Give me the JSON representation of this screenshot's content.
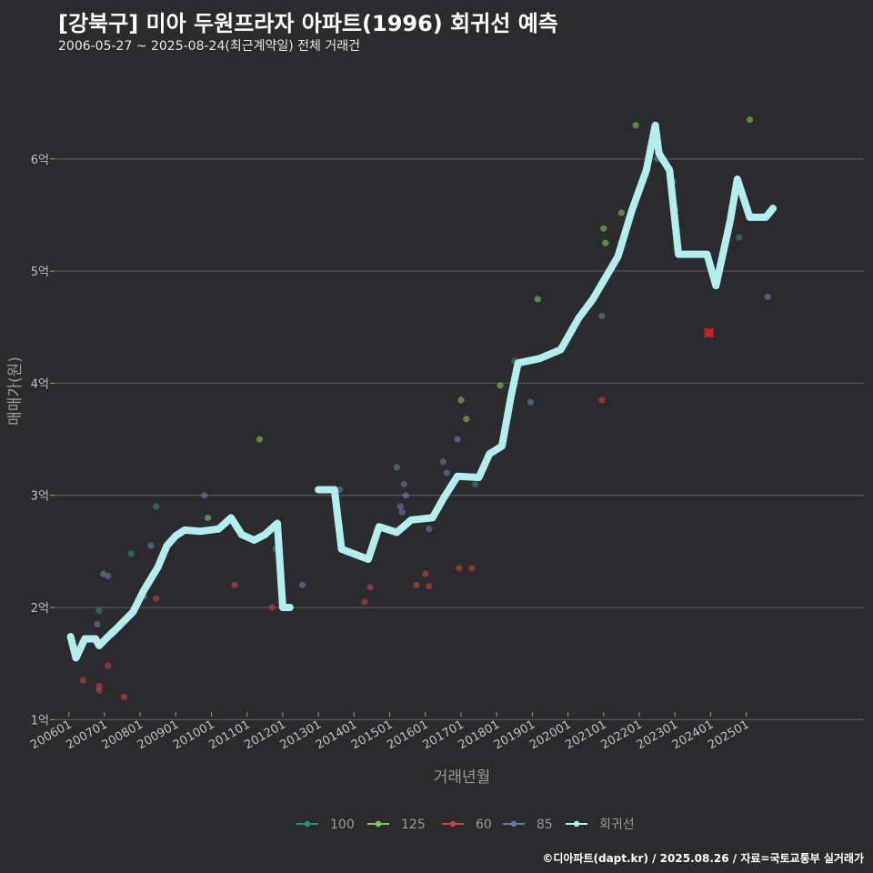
{
  "title": "[강북구] 미아 두원프라자 아파트(1996) 회귀선 예측",
  "subtitle": "2006-05-27 ~ 2025-08-24(최근계약일) 전체 거래건",
  "credit": "©디아파트(dapt.kr) / 2025.08.26 / 자료=국토교통부 실거래가",
  "colors": {
    "background": "#2b2b2d",
    "grid": "#555558",
    "s100": "#2e8b7a",
    "s125": "#7fc55a",
    "s60": "#c04545",
    "s85": "#6a7aa8",
    "regression": "#b2eeef",
    "highlight": "#d42020"
  },
  "chart_data": {
    "type": "scatter",
    "xlabel": "거래년월",
    "ylabel": "매매가(원)",
    "x_unit": "year",
    "xlim": [
      2005.6,
      2028.3
    ],
    "ylim": [
      0.97,
      6.85
    ],
    "x_ticks": [
      {
        "label": "200601",
        "x": 2006.0
      },
      {
        "label": "200701",
        "x": 2007.0
      },
      {
        "label": "200801",
        "x": 2008.0
      },
      {
        "label": "200901",
        "x": 2009.0
      },
      {
        "label": "201001",
        "x": 2010.0
      },
      {
        "label": "201101",
        "x": 2011.0
      },
      {
        "label": "201201",
        "x": 2012.0
      },
      {
        "label": "201301",
        "x": 2013.0
      },
      {
        "label": "201401",
        "x": 2014.0
      },
      {
        "label": "201501",
        "x": 2015.0
      },
      {
        "label": "201601",
        "x": 2016.0
      },
      {
        "label": "201701",
        "x": 2017.0
      },
      {
        "label": "201801",
        "x": 2018.0
      },
      {
        "label": "201901",
        "x": 2019.0
      },
      {
        "label": "202001",
        "x": 2020.0
      },
      {
        "label": "202101",
        "x": 2021.0
      },
      {
        "label": "202201",
        "x": 2022.0
      },
      {
        "label": "202301",
        "x": 2023.0
      },
      {
        "label": "202401",
        "x": 2024.0
      },
      {
        "label": "202501",
        "x": 2025.0
      }
    ],
    "y_ticks": [
      {
        "label": "1억",
        "y": 1
      },
      {
        "label": "2억",
        "y": 2
      },
      {
        "label": "3억",
        "y": 3
      },
      {
        "label": "4억",
        "y": 4
      },
      {
        "label": "5억",
        "y": 5
      },
      {
        "label": "6억",
        "y": 6
      }
    ],
    "grid": true,
    "legend_position": "bottom",
    "legend": [
      "100",
      "125",
      "60",
      "85",
      "회귀선"
    ],
    "series": [
      {
        "name": "100",
        "points": [
          [
            2006.85,
            1.97
          ],
          [
            2007.75,
            2.48
          ],
          [
            2008.45,
            2.9
          ],
          [
            2011.8,
            2.52
          ],
          [
            2017.4,
            3.1
          ],
          [
            2018.5,
            4.2
          ],
          [
            2022.5,
            6.0
          ],
          [
            2022.95,
            5.8
          ],
          [
            2024.8,
            5.3
          ]
        ]
      },
      {
        "name": "125",
        "points": [
          [
            2009.9,
            2.8
          ],
          [
            2011.35,
            3.5
          ],
          [
            2017.0,
            3.85
          ],
          [
            2017.15,
            3.68
          ],
          [
            2018.1,
            3.98
          ],
          [
            2021.0,
            5.38
          ],
          [
            2021.05,
            5.25
          ],
          [
            2021.5,
            5.52
          ],
          [
            2021.9,
            6.3
          ],
          [
            2022.3,
            6.1
          ],
          [
            2023.0,
            5.55
          ],
          [
            2019.15,
            4.75
          ],
          [
            2025.1,
            6.35
          ]
        ]
      },
      {
        "name": "60",
        "points": [
          [
            2006.4,
            1.35
          ],
          [
            2006.85,
            1.3
          ],
          [
            2006.85,
            1.26
          ],
          [
            2007.1,
            1.48
          ],
          [
            2007.55,
            1.2
          ],
          [
            2008.45,
            2.08
          ],
          [
            2010.65,
            2.2
          ],
          [
            2011.7,
            2.0
          ],
          [
            2014.3,
            2.05
          ],
          [
            2014.45,
            2.18
          ],
          [
            2015.75,
            2.2
          ],
          [
            2016.0,
            2.3
          ],
          [
            2016.1,
            2.19
          ],
          [
            2016.95,
            2.35
          ],
          [
            2017.3,
            2.35
          ],
          [
            2020.95,
            3.85
          ],
          [
            2024.0,
            4.45
          ]
        ]
      },
      {
        "name": "85",
        "points": [
          [
            2006.8,
            1.85
          ],
          [
            2006.97,
            2.3
          ],
          [
            2007.1,
            2.28
          ],
          [
            2008.1,
            2.1
          ],
          [
            2008.3,
            2.55
          ],
          [
            2009.8,
            3.0
          ],
          [
            2012.55,
            2.2
          ],
          [
            2013.6,
            3.05
          ],
          [
            2015.2,
            3.25
          ],
          [
            2015.3,
            2.9
          ],
          [
            2015.35,
            2.85
          ],
          [
            2015.4,
            3.1
          ],
          [
            2015.45,
            3.0
          ],
          [
            2016.1,
            2.7
          ],
          [
            2016.5,
            3.3
          ],
          [
            2016.6,
            3.2
          ],
          [
            2016.9,
            3.5
          ],
          [
            2018.95,
            3.83
          ],
          [
            2020.95,
            4.6
          ],
          [
            2025.6,
            4.77
          ]
        ]
      }
    ],
    "highlight_point": [
      2023.95,
      4.45
    ],
    "regression_segments": [
      [
        [
          2006.05,
          1.74
        ],
        [
          2006.2,
          1.55
        ],
        [
          2006.45,
          1.72
        ],
        [
          2006.75,
          1.72
        ],
        [
          2006.85,
          1.66
        ],
        [
          2007.1,
          1.74
        ],
        [
          2007.3,
          1.8
        ],
        [
          2007.55,
          1.88
        ],
        [
          2007.8,
          1.96
        ],
        [
          2008.1,
          2.15
        ],
        [
          2008.5,
          2.36
        ],
        [
          2008.75,
          2.55
        ],
        [
          2009.0,
          2.64
        ],
        [
          2009.25,
          2.69
        ],
        [
          2009.7,
          2.68
        ],
        [
          2010.2,
          2.7
        ],
        [
          2010.55,
          2.8
        ],
        [
          2010.85,
          2.65
        ],
        [
          2011.2,
          2.6
        ],
        [
          2011.5,
          2.65
        ],
        [
          2011.85,
          2.75
        ],
        [
          2012.0,
          2.0
        ],
        [
          2012.2,
          2.0
        ]
      ],
      [
        [
          2013.0,
          3.05
        ],
        [
          2013.45,
          3.05
        ],
        [
          2013.65,
          2.52
        ],
        [
          2014.4,
          2.43
        ],
        [
          2014.7,
          2.72
        ],
        [
          2015.2,
          2.67
        ],
        [
          2015.6,
          2.78
        ],
        [
          2016.2,
          2.8
        ],
        [
          2016.5,
          2.97
        ],
        [
          2016.9,
          3.17
        ],
        [
          2017.5,
          3.16
        ],
        [
          2017.8,
          3.37
        ],
        [
          2018.15,
          3.44
        ],
        [
          2018.4,
          3.88
        ],
        [
          2018.6,
          4.18
        ],
        [
          2019.2,
          4.22
        ],
        [
          2019.8,
          4.3
        ],
        [
          2020.3,
          4.58
        ],
        [
          2020.7,
          4.75
        ],
        [
          2021.4,
          5.13
        ],
        [
          2021.8,
          5.55
        ],
        [
          2022.2,
          5.9
        ],
        [
          2022.45,
          6.3
        ],
        [
          2022.55,
          6.05
        ],
        [
          2022.85,
          5.9
        ],
        [
          2023.1,
          5.15
        ],
        [
          2023.9,
          5.15
        ],
        [
          2024.15,
          4.87
        ],
        [
          2024.55,
          5.45
        ],
        [
          2024.75,
          5.82
        ],
        [
          2025.1,
          5.48
        ],
        [
          2025.55,
          5.48
        ],
        [
          2025.75,
          5.56
        ]
      ]
    ]
  }
}
